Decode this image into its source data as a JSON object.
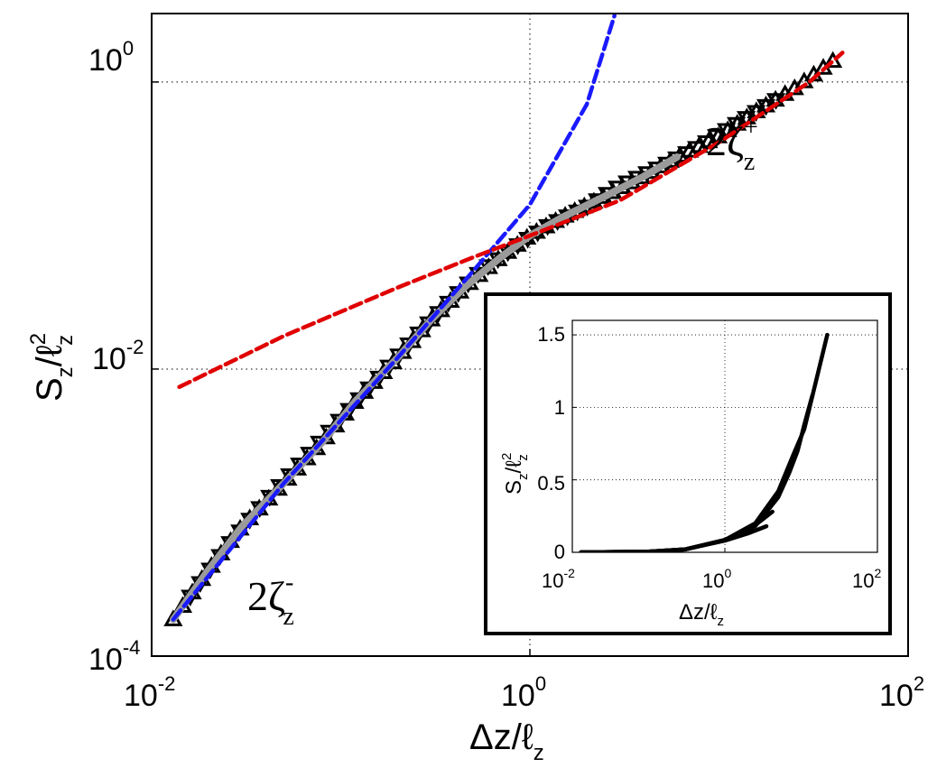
{
  "chart_data": [
    {
      "type": "line",
      "title": "",
      "xlabel": "Δz/ℓ_z",
      "ylabel": "S_z/ℓ_z^2",
      "xscale": "log",
      "yscale": "log",
      "xlim": [
        0.01,
        100
      ],
      "ylim": [
        0.0001,
        3
      ],
      "grid": true,
      "x_ticks": [
        {
          "base": "10",
          "exp": "-2"
        },
        {
          "base": "10",
          "exp": "0"
        },
        {
          "base": "10",
          "exp": "2"
        }
      ],
      "y_ticks": [
        {
          "base": "10",
          "exp": "-4"
        },
        {
          "base": "10",
          "exp": "-2"
        },
        {
          "base": "10",
          "exp": "0"
        }
      ],
      "xlabel_main": "Δz/ℓ",
      "xlabel_sub": "z",
      "ylabel_main_s": "S",
      "ylabel_sub": "z",
      "ylabel_mid": "/ℓ",
      "ylabel_sup": "2",
      "annotations": [
        {
          "main": "2ζ",
          "sup": "+",
          "sub": "z"
        },
        {
          "main": "2ζ",
          "sup": "-",
          "sub": "z"
        }
      ],
      "series": [
        {
          "name": "data (up triangles)",
          "marker": "triangle-up",
          "color": "#000000",
          "x": [
            0.013,
            0.02,
            0.03,
            0.05,
            0.08,
            0.12,
            0.2,
            0.3,
            0.45,
            0.7,
            1.0,
            1.5,
            2.5,
            4,
            6,
            10,
            15,
            25,
            40
          ],
          "y": [
            0.00018,
            0.0004,
            0.0008,
            0.0016,
            0.0031,
            0.006,
            0.012,
            0.022,
            0.037,
            0.06,
            0.085,
            0.115,
            0.16,
            0.22,
            0.3,
            0.42,
            0.6,
            0.9,
            1.4
          ]
        },
        {
          "name": "data (down triangles)",
          "marker": "triangle-down",
          "color": "#000000",
          "x": [
            0.016,
            0.025,
            0.04,
            0.065,
            0.1,
            0.16,
            0.25,
            0.38,
            0.55,
            0.85,
            1.25,
            2,
            3,
            5,
            8,
            12,
            20
          ],
          "y": [
            0.00026,
            0.00058,
            0.0012,
            0.0024,
            0.0045,
            0.0088,
            0.017,
            0.03,
            0.048,
            0.072,
            0.1,
            0.135,
            0.19,
            0.26,
            0.36,
            0.5,
            0.75
          ]
        },
        {
          "name": "data (gray)",
          "marker": "line",
          "color": "#9a9a9a",
          "x": [
            0.013,
            0.02,
            0.03,
            0.05,
            0.08,
            0.12,
            0.2,
            0.3,
            0.45,
            0.7,
            1.0,
            1.5,
            2.5,
            4,
            6
          ],
          "y": [
            0.00018,
            0.0004,
            0.0008,
            0.0016,
            0.0031,
            0.006,
            0.012,
            0.022,
            0.037,
            0.06,
            0.085,
            0.115,
            0.16,
            0.22,
            0.3
          ]
        },
        {
          "name": "fit 2ζ_z^- (blue dashed)",
          "marker": "none",
          "color": "#1a1aff",
          "style": "dashed",
          "x": [
            0.013,
            0.05,
            0.2,
            0.5,
            1.0,
            2.0,
            2.8
          ],
          "y": [
            0.00018,
            0.0016,
            0.012,
            0.048,
            0.14,
            0.7,
            2.9
          ]
        },
        {
          "name": "fit 2ζ_z^+ (red dashed)",
          "marker": "none",
          "color": "#e00000",
          "style": "dashed",
          "x": [
            0.014,
            0.05,
            0.2,
            0.5,
            1.0,
            3,
            10,
            30,
            45
          ],
          "y": [
            0.0075,
            0.017,
            0.037,
            0.06,
            0.085,
            0.15,
            0.38,
            1.0,
            1.6
          ]
        }
      ]
    },
    {
      "type": "line",
      "title": "",
      "xlabel": "Δz/ℓ_z",
      "ylabel": "S_z/ℓ_z^2",
      "xscale": "log",
      "yscale": "linear",
      "xlim": [
        0.01,
        100
      ],
      "ylim": [
        0,
        1.6
      ],
      "grid": true,
      "x_ticks": [
        {
          "base": "10",
          "exp": "-2"
        },
        {
          "base": "10",
          "exp": "0"
        },
        {
          "base": "10",
          "exp": "2"
        }
      ],
      "y_ticks": [
        "0",
        "0.5",
        "1",
        "1.5"
      ],
      "xlabel_main": "Δz/ℓ",
      "xlabel_sub": "z",
      "ylabel_main_s": "S",
      "ylabel_sub": "z",
      "ylabel_mid": "/ℓ",
      "ylabel_sup": "2",
      "series": [
        {
          "name": "curve 1",
          "color": "#000000",
          "x": [
            0.013,
            0.1,
            0.3,
            1.0,
            2.5,
            5,
            8,
            11,
            16,
            22
          ],
          "y": [
            0.0,
            0.005,
            0.02,
            0.085,
            0.2,
            0.42,
            0.68,
            0.85,
            1.2,
            1.5
          ]
        },
        {
          "name": "curve 2",
          "color": "#000000",
          "x": [
            0.013,
            0.1,
            0.3,
            1.0,
            2.5,
            5,
            7,
            9,
            11,
            14
          ],
          "y": [
            0.0,
            0.005,
            0.02,
            0.085,
            0.18,
            0.38,
            0.55,
            0.7,
            0.88,
            1.08
          ]
        },
        {
          "name": "curve 3",
          "color": "#000000",
          "x": [
            0.013,
            0.1,
            0.3,
            1.0,
            2.0,
            3.0,
            4.2
          ],
          "y": [
            0.0,
            0.005,
            0.02,
            0.085,
            0.15,
            0.22,
            0.28
          ]
        },
        {
          "name": "curve 4",
          "color": "#000000",
          "x": [
            0.013,
            0.1,
            0.3,
            1.0,
            2.0,
            3.5
          ],
          "y": [
            0.0,
            0.005,
            0.02,
            0.08,
            0.13,
            0.18
          ]
        }
      ]
    }
  ]
}
